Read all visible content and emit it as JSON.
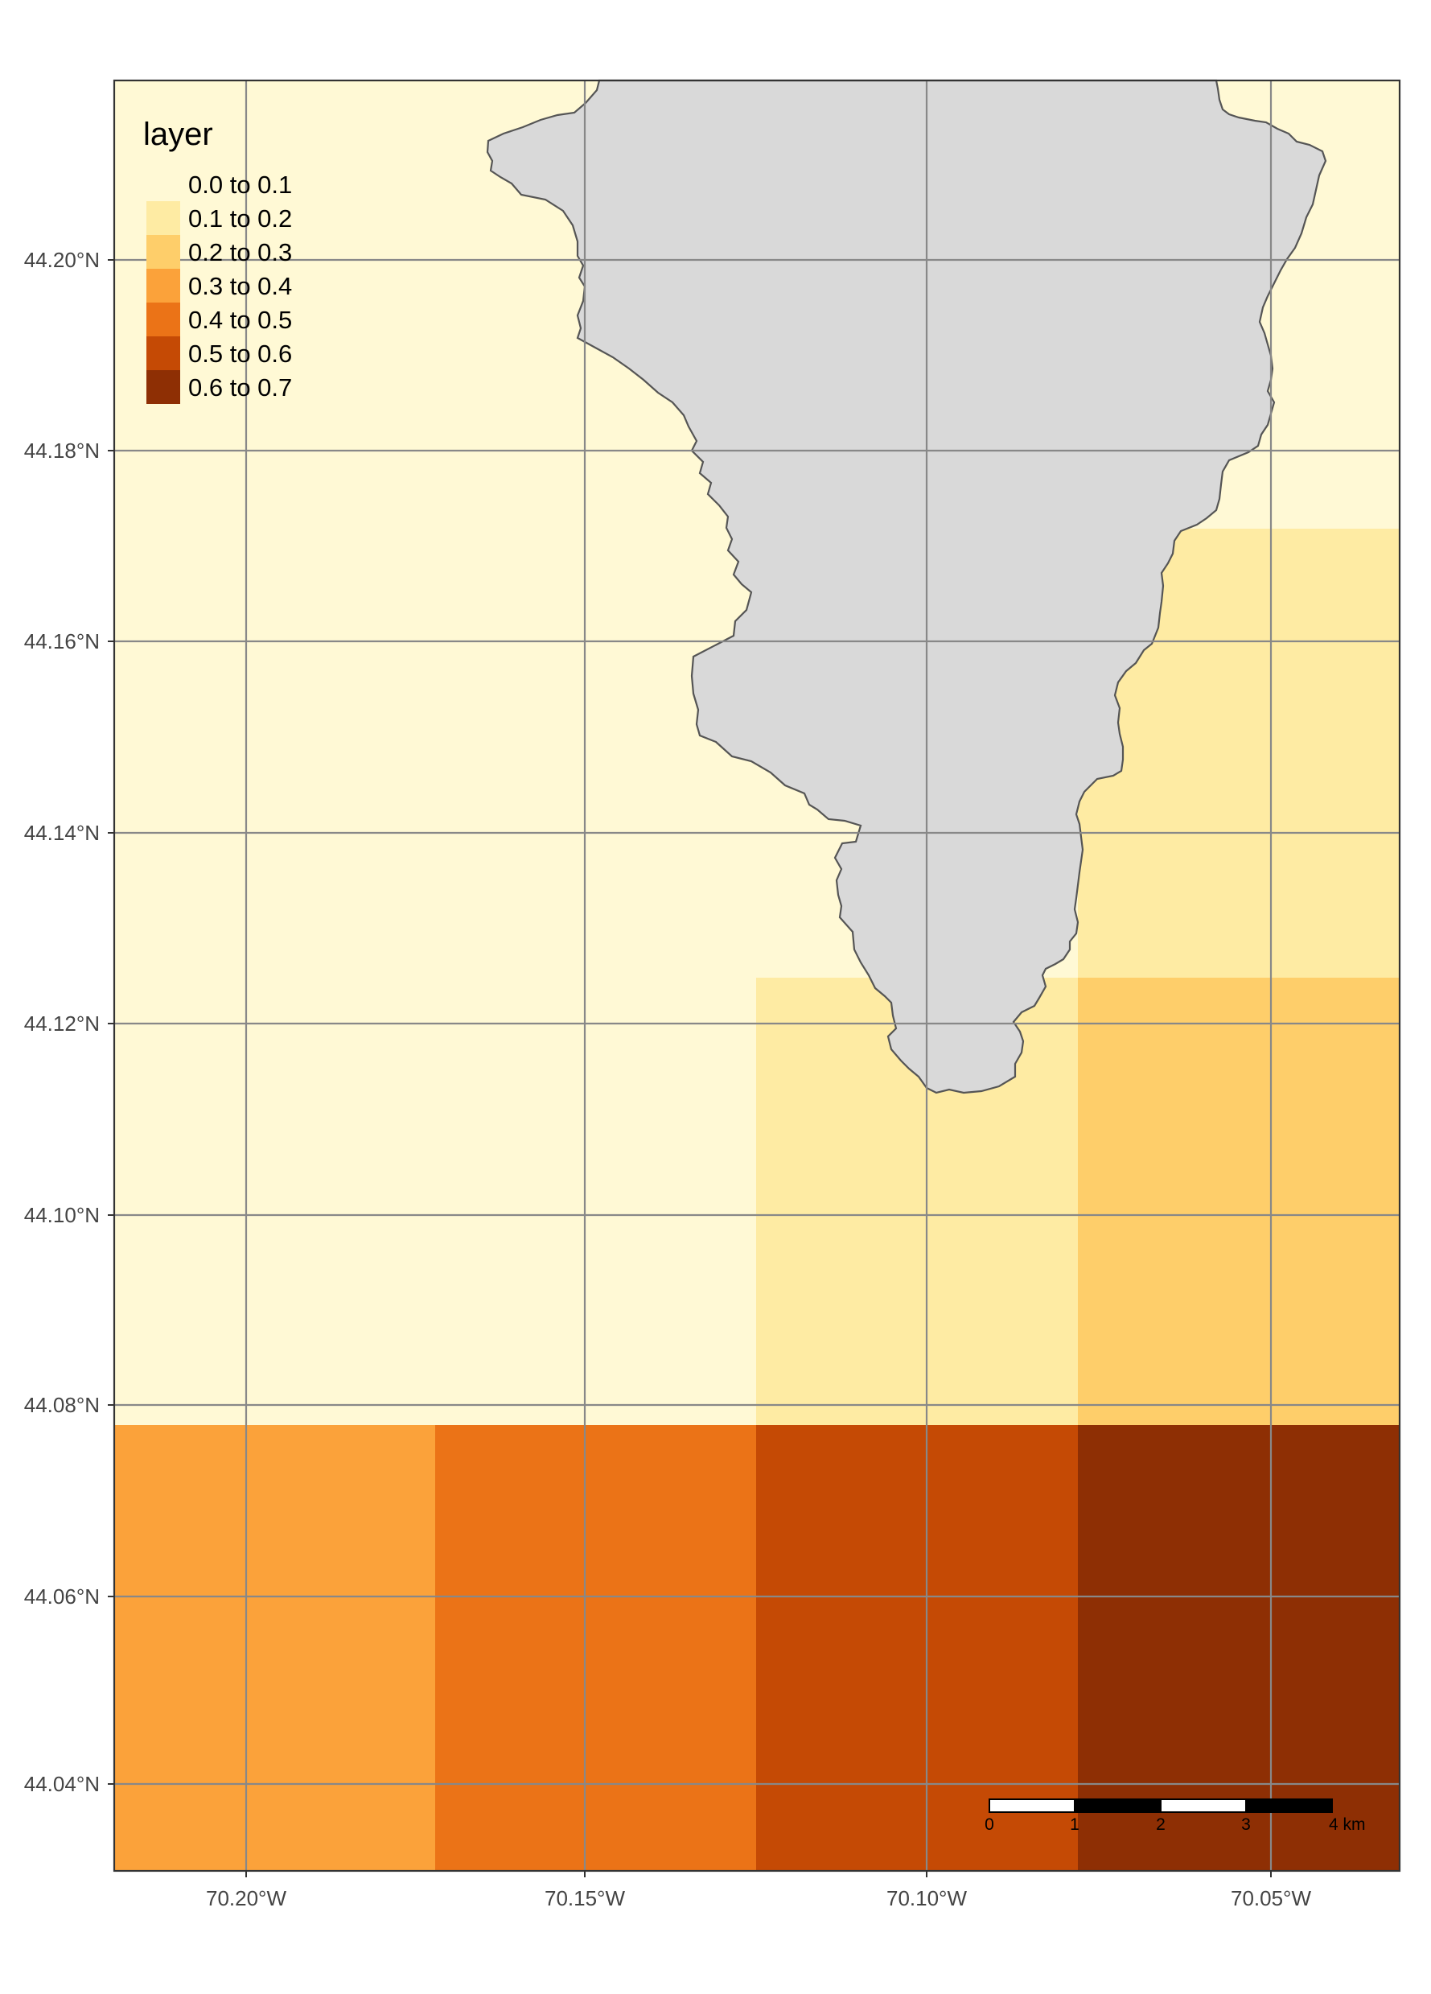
{
  "map": {
    "legend": {
      "title": "layer",
      "entries": [
        {
          "label": "0.0 to 0.1",
          "color": "#FFF9D5"
        },
        {
          "label": "0.1 to 0.2",
          "color": "#FEEBA3"
        },
        {
          "label": "0.2 to 0.3",
          "color": "#FECE6A"
        },
        {
          "label": "0.3 to 0.4",
          "color": "#FBA23A"
        },
        {
          "label": "0.4 to 0.5",
          "color": "#EB7317"
        },
        {
          "label": "0.5 to 0.6",
          "color": "#C54A05"
        },
        {
          "label": "0.6 to 0.7",
          "color": "#8E2F04"
        }
      ]
    },
    "axes": {
      "lon_labels": [
        "70.20°W",
        "70.15°W",
        "70.10°W",
        "70.05°W"
      ],
      "lat_labels": [
        "44.04°N",
        "44.06°N",
        "44.08°N",
        "44.10°N",
        "44.12°N",
        "44.14°N",
        "44.16°N",
        "44.18°N",
        "44.20°N"
      ]
    },
    "scale_bar": {
      "labels": [
        "0",
        "1",
        "2",
        "3",
        "4 km"
      ]
    },
    "polygon_color": "#D9D9D9",
    "polygon_stroke": "#555555"
  }
}
